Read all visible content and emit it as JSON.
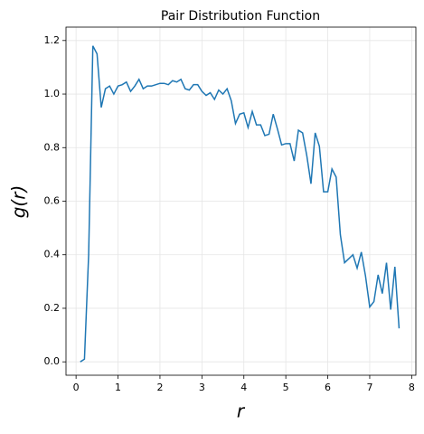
{
  "chart_data": {
    "type": "line",
    "title": "Pair Distribution Function",
    "xlabel": "r",
    "ylabel": "g(r)",
    "x": [
      0.1,
      0.2,
      0.3,
      0.4,
      0.5,
      0.6,
      0.7,
      0.8,
      0.9,
      1.0,
      1.1,
      1.2,
      1.3,
      1.4,
      1.5,
      1.6,
      1.7,
      1.8,
      1.9,
      2.0,
      2.1,
      2.2,
      2.3,
      2.4,
      2.5,
      2.6,
      2.7,
      2.8,
      2.9,
      3.0,
      3.1,
      3.2,
      3.3,
      3.4,
      3.5,
      3.6,
      3.7,
      3.8,
      3.9,
      4.0,
      4.1,
      4.2,
      4.3,
      4.4,
      4.5,
      4.6,
      4.7,
      4.8,
      4.9,
      5.0,
      5.1,
      5.2,
      5.3,
      5.4,
      5.5,
      5.6,
      5.7,
      5.8,
      5.9,
      6.0,
      6.1,
      6.2,
      6.3,
      6.4,
      6.5,
      6.6,
      6.7,
      6.8,
      6.9,
      7.0,
      7.1,
      7.2,
      7.3,
      7.4,
      7.5,
      7.6,
      7.7
    ],
    "series": [
      {
        "color": "#1f77b4",
        "values": [
          0.0,
          0.01,
          0.4,
          1.18,
          1.15,
          0.95,
          1.02,
          1.03,
          1.0,
          1.03,
          1.035,
          1.045,
          1.01,
          1.03,
          1.055,
          1.02,
          1.03,
          1.03,
          1.035,
          1.04,
          1.04,
          1.035,
          1.05,
          1.045,
          1.055,
          1.02,
          1.015,
          1.035,
          1.035,
          1.01,
          0.995,
          1.005,
          0.98,
          1.015,
          1.0,
          1.02,
          0.975,
          0.89,
          0.925,
          0.93,
          0.875,
          0.935,
          0.885,
          0.885,
          0.845,
          0.85,
          0.925,
          0.87,
          0.81,
          0.815,
          0.815,
          0.75,
          0.865,
          0.855,
          0.77,
          0.665,
          0.855,
          0.805,
          0.635,
          0.635,
          0.72,
          0.69,
          0.475,
          0.37,
          0.385,
          0.4,
          0.35,
          0.41,
          0.32,
          0.205,
          0.225,
          0.325,
          0.255,
          0.37,
          0.195,
          0.355,
          0.125
        ]
      }
    ],
    "xlim": [
      -0.24,
      8.1
    ],
    "ylim": [
      -0.05,
      1.25
    ],
    "xticks": [
      0,
      1,
      2,
      3,
      4,
      5,
      6,
      7,
      8
    ],
    "yticks": [
      {
        "value": 0,
        "label": "0.0"
      },
      0.2,
      0.4,
      0.6,
      0.8,
      {
        "value": 1,
        "label": "1.0"
      },
      1.2
    ],
    "grid": true
  }
}
